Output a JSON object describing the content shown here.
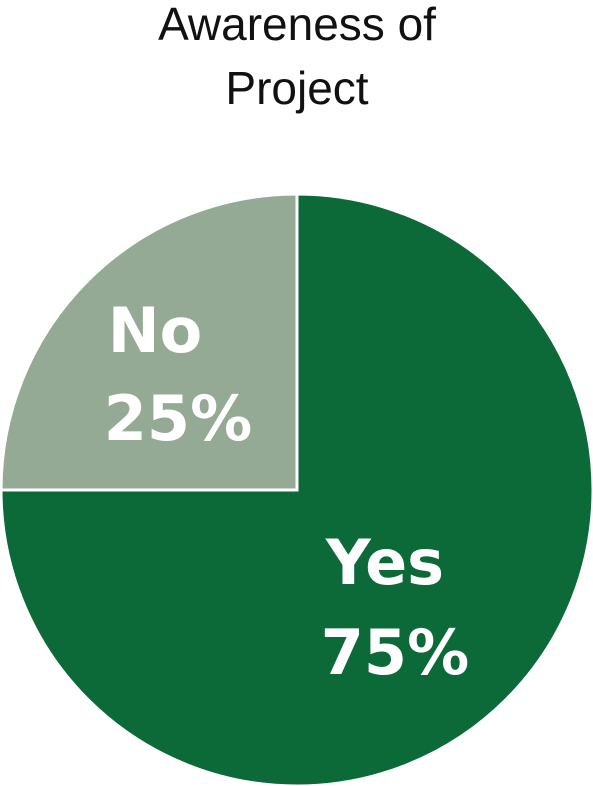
{
  "chart_data": {
    "type": "pie",
    "title_lines": [
      "Awareness of",
      "Project"
    ],
    "slices": [
      {
        "label": "Yes",
        "value": 75,
        "value_label": "75%",
        "color": "#0b6a38"
      },
      {
        "label": "No",
        "value": 25,
        "value_label": "25%",
        "color": "#94aa94"
      }
    ],
    "slice_border_color": "#ffffff",
    "legend": "none"
  }
}
